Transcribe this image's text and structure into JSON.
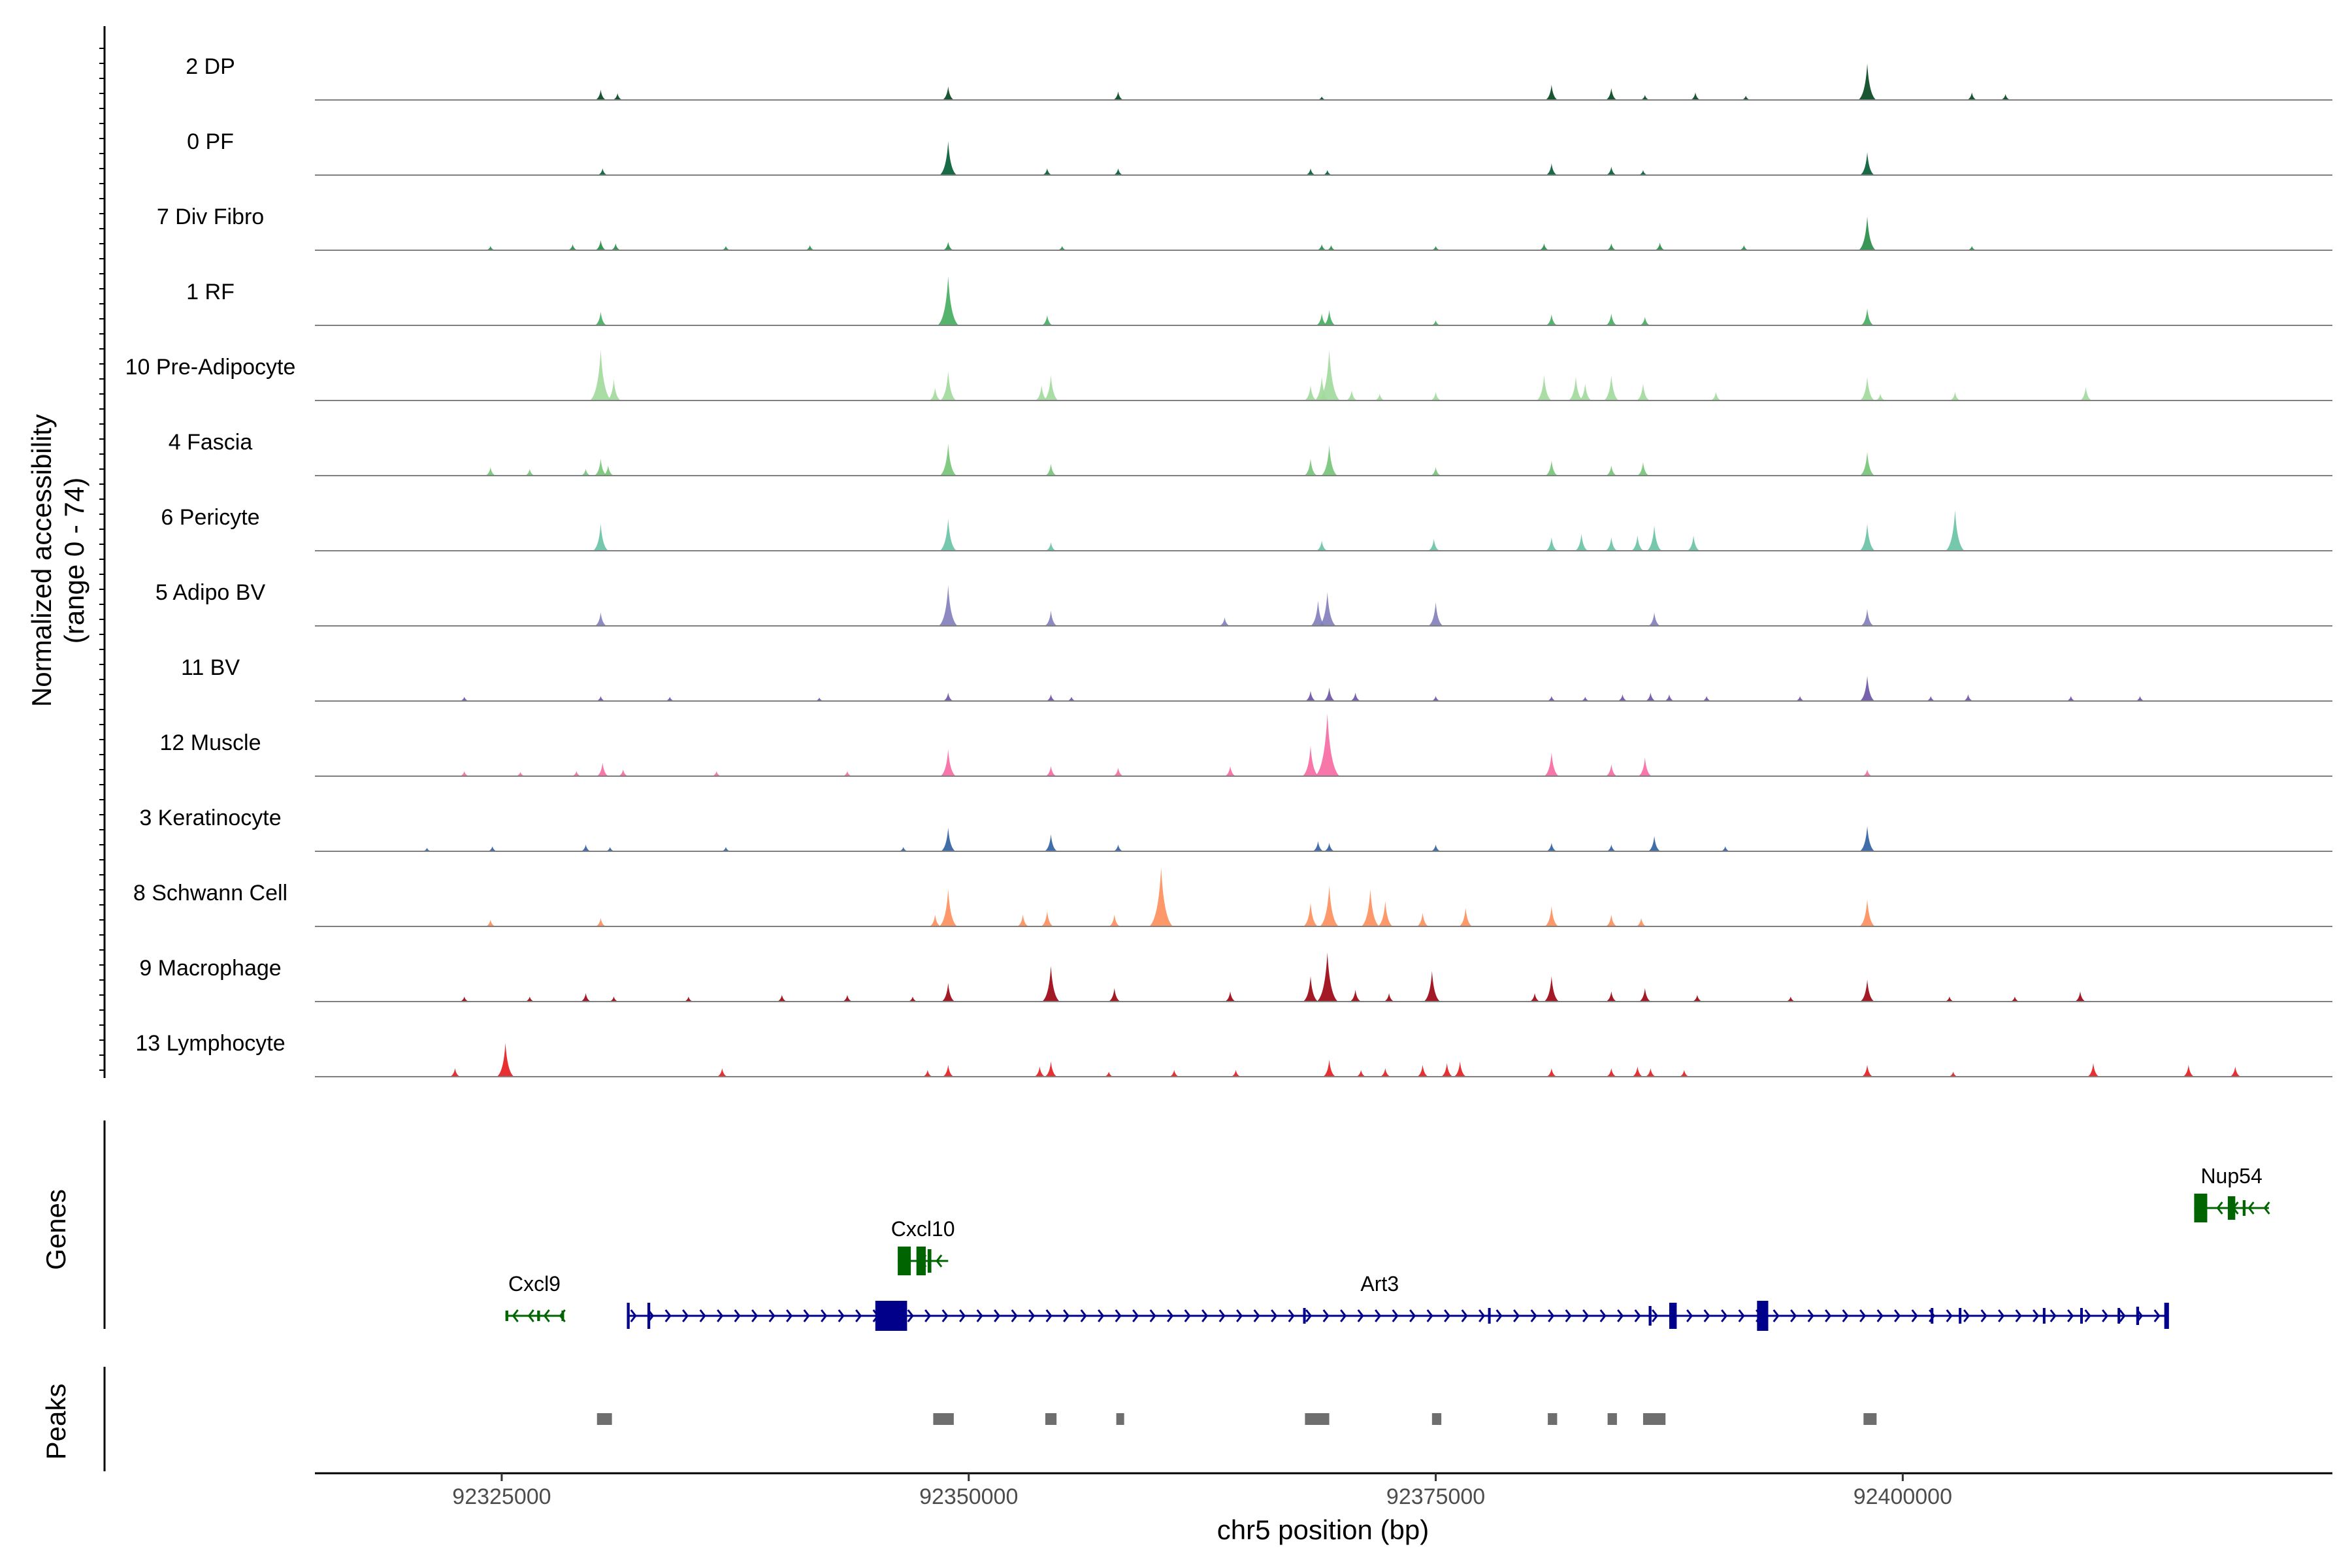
{
  "chart_data": {
    "type": "area",
    "title": "",
    "ylabel": "Normalized accessibility",
    "ylabel_range": "(range 0 - 74)",
    "ylim": [
      0,
      74
    ],
    "xlabel": "chr5 position (bp)",
    "xlim": [
      92315000,
      92423000
    ],
    "xticks": [
      92325000,
      92350000,
      92375000,
      92400000
    ],
    "xtick_labels": [
      "92325000",
      "92350000",
      "92375000",
      "92400000"
    ],
    "tracks": [
      {
        "name": "2 DP",
        "color": "#00441b",
        "peaks": [
          [
            92330300,
            12
          ],
          [
            92331200,
            8
          ],
          [
            92348900,
            16
          ],
          [
            92358000,
            10
          ],
          [
            92368900,
            4
          ],
          [
            92381200,
            18
          ],
          [
            92384400,
            14
          ],
          [
            92386200,
            6
          ],
          [
            92388900,
            9
          ],
          [
            92391600,
            5
          ],
          [
            92398100,
            43
          ],
          [
            92403700,
            9
          ],
          [
            92405500,
            7
          ]
        ]
      },
      {
        "name": "0 PF",
        "color": "#005a32",
        "peaks": [
          [
            92330400,
            8
          ],
          [
            92348900,
            40
          ],
          [
            92354200,
            8
          ],
          [
            92358000,
            8
          ],
          [
            92368300,
            8
          ],
          [
            92369200,
            6
          ],
          [
            92381200,
            14
          ],
          [
            92384400,
            10
          ],
          [
            92386100,
            6
          ],
          [
            92398100,
            27
          ]
        ]
      },
      {
        "name": "7 Div Fibro",
        "color": "#238b45",
        "peaks": [
          [
            92324400,
            5
          ],
          [
            92328800,
            7
          ],
          [
            92330300,
            12
          ],
          [
            92331100,
            8
          ],
          [
            92337000,
            5
          ],
          [
            92341500,
            6
          ],
          [
            92348900,
            10
          ],
          [
            92355000,
            5
          ],
          [
            92368900,
            7
          ],
          [
            92369400,
            6
          ],
          [
            92375000,
            5
          ],
          [
            92380800,
            8
          ],
          [
            92384400,
            8
          ],
          [
            92387000,
            9
          ],
          [
            92391500,
            6
          ],
          [
            92398100,
            40
          ],
          [
            92403700,
            5
          ]
        ]
      },
      {
        "name": "1 RF",
        "color": "#41ab5d",
        "peaks": [
          [
            92330300,
            16
          ],
          [
            92348900,
            58
          ],
          [
            92354200,
            12
          ],
          [
            92368900,
            14
          ],
          [
            92369300,
            18
          ],
          [
            92375000,
            6
          ],
          [
            92381200,
            13
          ],
          [
            92384400,
            14
          ],
          [
            92386200,
            10
          ],
          [
            92398100,
            20
          ]
        ]
      },
      {
        "name": "10 Pre-Adipocyte",
        "color": "#a1d99b",
        "peaks": [
          [
            92330300,
            60
          ],
          [
            92331000,
            25
          ],
          [
            92348200,
            15
          ],
          [
            92348900,
            35
          ],
          [
            92353900,
            18
          ],
          [
            92354400,
            30
          ],
          [
            92368300,
            18
          ],
          [
            92368900,
            28
          ],
          [
            92369300,
            60
          ],
          [
            92370500,
            12
          ],
          [
            92372000,
            8
          ],
          [
            92375000,
            10
          ],
          [
            92380800,
            30
          ],
          [
            92382500,
            28
          ],
          [
            92383000,
            20
          ],
          [
            92384400,
            30
          ],
          [
            92386100,
            20
          ],
          [
            92390000,
            10
          ],
          [
            92398100,
            28
          ],
          [
            92398800,
            8
          ],
          [
            92402800,
            10
          ],
          [
            92409800,
            16
          ]
        ]
      },
      {
        "name": "4 Fascia",
        "color": "#74c476",
        "peaks": [
          [
            92324400,
            10
          ],
          [
            92326500,
            8
          ],
          [
            92329500,
            8
          ],
          [
            92330300,
            20
          ],
          [
            92330700,
            12
          ],
          [
            92348900,
            38
          ],
          [
            92354400,
            14
          ],
          [
            92368300,
            20
          ],
          [
            92369300,
            36
          ],
          [
            92375000,
            10
          ],
          [
            92381200,
            18
          ],
          [
            92384400,
            12
          ],
          [
            92386100,
            16
          ],
          [
            92398100,
            28
          ]
        ]
      },
      {
        "name": "6 Pericyte",
        "color": "#66c2a4",
        "peaks": [
          [
            92330300,
            32
          ],
          [
            92348900,
            38
          ],
          [
            92354400,
            10
          ],
          [
            92368900,
            12
          ],
          [
            92374900,
            14
          ],
          [
            92381200,
            16
          ],
          [
            92382800,
            20
          ],
          [
            92384400,
            16
          ],
          [
            92385800,
            18
          ],
          [
            92386700,
            30
          ],
          [
            92388800,
            18
          ],
          [
            92398100,
            32
          ],
          [
            92402800,
            48
          ]
        ]
      },
      {
        "name": "5 Adipo BV",
        "color": "#807dba",
        "peaks": [
          [
            92330300,
            16
          ],
          [
            92348900,
            48
          ],
          [
            92354400,
            18
          ],
          [
            92363700,
            10
          ],
          [
            92368700,
            30
          ],
          [
            92369200,
            40
          ],
          [
            92375000,
            28
          ],
          [
            92386700,
            16
          ],
          [
            92398100,
            20
          ]
        ]
      },
      {
        "name": "11 BV",
        "color": "#6a51a3",
        "peaks": [
          [
            92323000,
            5
          ],
          [
            92330300,
            6
          ],
          [
            92334000,
            5
          ],
          [
            92342000,
            4
          ],
          [
            92348900,
            10
          ],
          [
            92354400,
            8
          ],
          [
            92355500,
            5
          ],
          [
            92368300,
            12
          ],
          [
            92369300,
            16
          ],
          [
            92370700,
            10
          ],
          [
            92375000,
            6
          ],
          [
            92381200,
            6
          ],
          [
            92383000,
            5
          ],
          [
            92385000,
            8
          ],
          [
            92386500,
            10
          ],
          [
            92387500,
            8
          ],
          [
            92389500,
            6
          ],
          [
            92394500,
            6
          ],
          [
            92398100,
            30
          ],
          [
            92401500,
            6
          ],
          [
            92403500,
            8
          ],
          [
            92409000,
            6
          ],
          [
            92412700,
            6
          ]
        ]
      },
      {
        "name": "12 Muscle",
        "color": "#f768a1",
        "peaks": [
          [
            92323000,
            6
          ],
          [
            92326000,
            5
          ],
          [
            92329000,
            6
          ],
          [
            92330400,
            16
          ],
          [
            92331500,
            8
          ],
          [
            92336500,
            6
          ],
          [
            92343500,
            6
          ],
          [
            92348900,
            32
          ],
          [
            92354400,
            12
          ],
          [
            92358000,
            10
          ],
          [
            92364000,
            12
          ],
          [
            92368300,
            36
          ],
          [
            92369200,
            74
          ],
          [
            92381200,
            28
          ],
          [
            92384400,
            14
          ],
          [
            92386200,
            22
          ],
          [
            92398100,
            8
          ]
        ]
      },
      {
        "name": "3 Keratinocyte",
        "color": "#2c5ea0",
        "peaks": [
          [
            92321000,
            4
          ],
          [
            92324500,
            6
          ],
          [
            92329500,
            8
          ],
          [
            92330800,
            5
          ],
          [
            92337000,
            5
          ],
          [
            92346500,
            5
          ],
          [
            92348900,
            28
          ],
          [
            92354400,
            20
          ],
          [
            92358000,
            8
          ],
          [
            92368700,
            12
          ],
          [
            92369300,
            10
          ],
          [
            92375000,
            8
          ],
          [
            92381200,
            10
          ],
          [
            92384400,
            8
          ],
          [
            92386700,
            18
          ],
          [
            92390500,
            6
          ],
          [
            92398100,
            30
          ]
        ]
      },
      {
        "name": "8 Schwann Cell",
        "color": "#fc8d59",
        "peaks": [
          [
            92324400,
            8
          ],
          [
            92330300,
            10
          ],
          [
            92348200,
            14
          ],
          [
            92348900,
            44
          ],
          [
            92352900,
            14
          ],
          [
            92354200,
            18
          ],
          [
            92357800,
            14
          ],
          [
            92360300,
            70
          ],
          [
            92368300,
            28
          ],
          [
            92369300,
            48
          ],
          [
            92371500,
            44
          ],
          [
            92372300,
            30
          ],
          [
            92374300,
            16
          ],
          [
            92376600,
            22
          ],
          [
            92381200,
            24
          ],
          [
            92384400,
            14
          ],
          [
            92386000,
            10
          ],
          [
            92398100,
            32
          ]
        ]
      },
      {
        "name": "9 Macrophage",
        "color": "#99000d",
        "peaks": [
          [
            92323000,
            6
          ],
          [
            92326500,
            6
          ],
          [
            92329500,
            10
          ],
          [
            92331000,
            6
          ],
          [
            92335000,
            6
          ],
          [
            92340000,
            8
          ],
          [
            92343500,
            8
          ],
          [
            92347000,
            6
          ],
          [
            92348900,
            22
          ],
          [
            92354400,
            42
          ],
          [
            92357800,
            16
          ],
          [
            92364000,
            12
          ],
          [
            92368300,
            30
          ],
          [
            92369200,
            58
          ],
          [
            92370700,
            14
          ],
          [
            92372500,
            10
          ],
          [
            92374800,
            36
          ],
          [
            92380300,
            10
          ],
          [
            92381200,
            30
          ],
          [
            92384400,
            12
          ],
          [
            92386200,
            16
          ],
          [
            92389000,
            8
          ],
          [
            92394000,
            6
          ],
          [
            92398100,
            26
          ],
          [
            92402500,
            6
          ],
          [
            92406000,
            6
          ],
          [
            92409500,
            12
          ]
        ]
      },
      {
        "name": "13 Lymphocyte",
        "color": "#e31a1c",
        "peaks": [
          [
            92322500,
            10
          ],
          [
            92325200,
            40
          ],
          [
            92336800,
            10
          ],
          [
            92347800,
            8
          ],
          [
            92348900,
            14
          ],
          [
            92353800,
            12
          ],
          [
            92354400,
            18
          ],
          [
            92357500,
            6
          ],
          [
            92361000,
            8
          ],
          [
            92364300,
            8
          ],
          [
            92369300,
            20
          ],
          [
            92371000,
            8
          ],
          [
            92372300,
            10
          ],
          [
            92374300,
            14
          ],
          [
            92375600,
            16
          ],
          [
            92376300,
            18
          ],
          [
            92381200,
            10
          ],
          [
            92384400,
            10
          ],
          [
            92385800,
            12
          ],
          [
            92386500,
            10
          ],
          [
            92388300,
            8
          ],
          [
            92398100,
            14
          ],
          [
            92402700,
            6
          ],
          [
            92410200,
            16
          ],
          [
            92415300,
            14
          ],
          [
            92417800,
            12
          ]
        ]
      }
    ],
    "genes": [
      {
        "name": "Cxcl9",
        "color": "#006400",
        "strand": "-",
        "start": 92325200,
        "end": 92328300,
        "row": 3
      },
      {
        "name": "Cxcl10",
        "color": "#006400",
        "strand": "-",
        "start": 92346200,
        "end": 92348900,
        "row": 2
      },
      {
        "name": "Art3",
        "color": "#00008b",
        "strand": "+",
        "start": 92331700,
        "end": 92414200,
        "row": 3
      },
      {
        "name": "Nup54",
        "color": "#006400",
        "strand": "-",
        "start": 92415600,
        "end": 92419600,
        "row": 1
      }
    ],
    "gene_panel_label": "Genes",
    "peak_regions": [
      [
        92330100,
        92330900
      ],
      [
        92348100,
        92349200
      ],
      [
        92354100,
        92354700
      ],
      [
        92357900,
        92358300
      ],
      [
        92368000,
        92369300
      ],
      [
        92374800,
        92375300
      ],
      [
        92381000,
        92381500
      ],
      [
        92384200,
        92384700
      ],
      [
        92386100,
        92387300
      ],
      [
        92397900,
        92398600
      ]
    ],
    "peaks_panel_label": "Peaks"
  }
}
